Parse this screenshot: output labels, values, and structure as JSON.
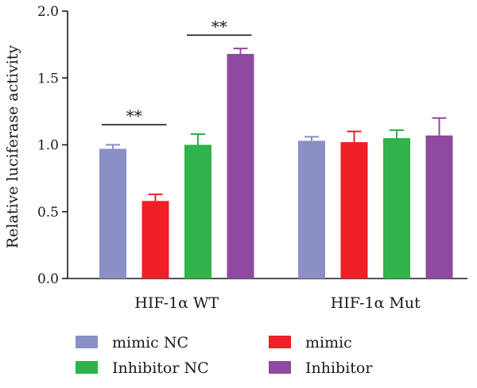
{
  "chart_data": {
    "type": "bar",
    "title": "",
    "xlabel": "",
    "ylabel": "Relative luciferase activity",
    "ylim": [
      0,
      2.0
    ],
    "yticks": [
      "0.0",
      "0.5",
      "1.0",
      "1.5",
      "2.0"
    ],
    "categories": [
      "HIF-1α WT",
      "HIF-1α Mut"
    ],
    "series": [
      {
        "name": "mimic NC",
        "color": "#8a8fc6",
        "values": [
          0.97,
          1.03
        ],
        "errors": [
          0.03,
          0.03
        ]
      },
      {
        "name": "mimic",
        "color": "#ee1f26",
        "values": [
          0.58,
          1.02
        ],
        "errors": [
          0.05,
          0.08
        ]
      },
      {
        "name": "Inhibitor NC",
        "color": "#2fb34a",
        "values": [
          1.0,
          1.05
        ],
        "errors": [
          0.08,
          0.06
        ]
      },
      {
        "name": "Inhibitor",
        "color": "#8e4a9f",
        "values": [
          1.68,
          1.07
        ],
        "errors": [
          0.04,
          0.13
        ]
      }
    ],
    "significance": [
      {
        "category": 0,
        "from_series": 0,
        "to_series": 1,
        "label": "**",
        "y": 1.15
      },
      {
        "category": 0,
        "from_series": 2,
        "to_series": 3,
        "label": "**",
        "y": 1.82
      }
    ],
    "legend": {
      "placement": "bottom",
      "columns": 2
    },
    "grid": false
  }
}
